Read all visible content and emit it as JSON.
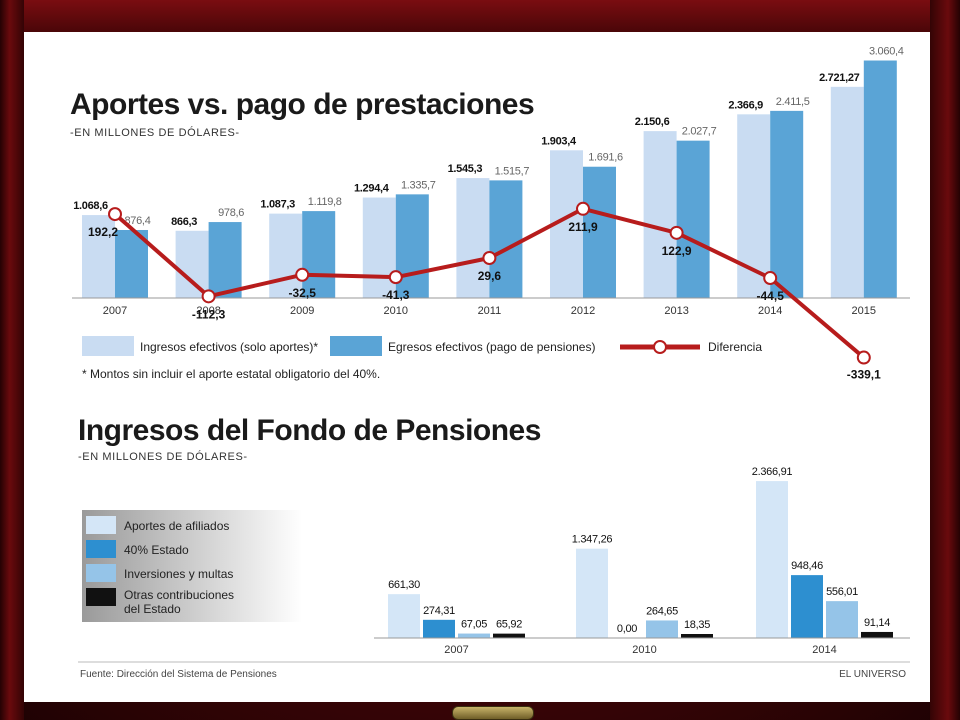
{
  "chart_data": [
    {
      "type": "bar",
      "title": "Aportes vs. pago de prestaciones",
      "subtitle": "-EN MILLONES DE DÓLARES-",
      "categories": [
        "2007",
        "2008",
        "2009",
        "2010",
        "2011",
        "2012",
        "2013",
        "2014",
        "2015"
      ],
      "series": [
        {
          "name": "Ingresos efectivos (solo aportes)*",
          "labels": [
            "1.068,6",
            "866,3",
            "1.087,3",
            "1.294,4",
            "1.545,3",
            "1.903,4",
            "2.150,6",
            "2.366,9",
            "2.721,27"
          ],
          "values": [
            1068.6,
            866.3,
            1087.3,
            1294.4,
            1545.3,
            1903.4,
            2150.6,
            2366.9,
            2721.27
          ],
          "color": "#c9dcf2"
        },
        {
          "name": "Egresos efectivos (pago de pensiones)",
          "labels": [
            "876,4",
            "978,6",
            "1.119,8",
            "1.335,7",
            "1.515,7",
            "1.691,6",
            "2.027,7",
            "2.411,5",
            "3.060,4"
          ],
          "values": [
            876.4,
            978.6,
            1119.8,
            1335.7,
            1515.7,
            1691.6,
            2027.7,
            2411.5,
            3060.4
          ],
          "color": "#5aa4d6"
        },
        {
          "name": "Diferencia",
          "type": "line",
          "labels": [
            "192,2",
            "-112,3",
            "-32,5",
            "-41,3",
            "29,6",
            "211,9",
            "122,9",
            "-44,5",
            "-339,1"
          ],
          "values": [
            192.2,
            -112.3,
            -32.5,
            -41.3,
            29.6,
            211.9,
            122.9,
            -44.5,
            -339.1
          ],
          "color": "#b71c1c"
        }
      ],
      "note": "* Montos sin incluir el aporte estatal obligatorio del 40%."
    },
    {
      "type": "bar",
      "title": "Ingresos del Fondo de Pensiones",
      "subtitle": "-EN MILLONES DE DÓLARES-",
      "categories": [
        "2007",
        "2010",
        "2014"
      ],
      "series": [
        {
          "name": "Aportes de afiliados",
          "labels": [
            "661,30",
            "1.347,26",
            "2.366,91"
          ],
          "values": [
            661.3,
            1347.26,
            2366.91
          ],
          "color": "#d4e6f7"
        },
        {
          "name": "40% Estado",
          "labels": [
            "274,31",
            "0,00",
            "948,46"
          ],
          "values": [
            274.31,
            0.0,
            948.46
          ],
          "color": "#2d8fd0"
        },
        {
          "name": "Inversiones y multas",
          "labels": [
            "67,05",
            "264,65",
            "556,01"
          ],
          "values": [
            67.05,
            264.65,
            556.01
          ],
          "color": "#95c4e8"
        },
        {
          "name": "Otras contribuciones del Estado",
          "labels": [
            "65,92",
            "18,35",
            "91,14"
          ],
          "values": [
            65.92,
            18.35,
            91.14
          ],
          "color": "#111111"
        }
      ]
    }
  ],
  "footer": {
    "source": "Fuente: Dirección del Sistema de Pensiones",
    "brand": "EL UNIVERSO"
  }
}
